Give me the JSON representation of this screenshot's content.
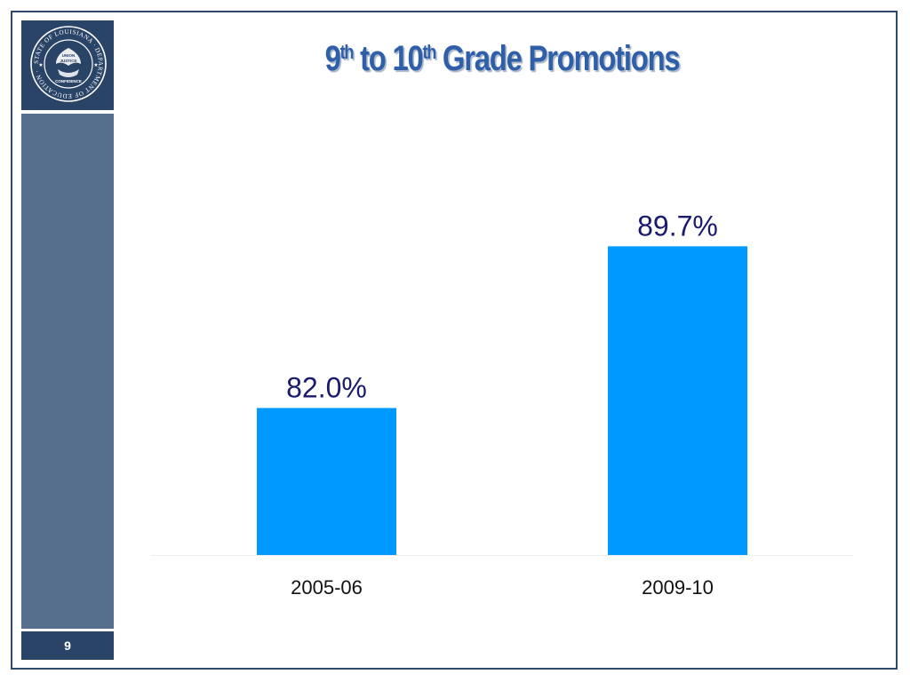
{
  "slide": {
    "title_parts": [
      {
        "text": "9",
        "sup": false
      },
      {
        "text": "th",
        "sup": true
      },
      {
        "text": " to 10",
        "sup": false
      },
      {
        "text": "th",
        "sup": true
      },
      {
        "text": " Grade Promotions",
        "sup": false
      }
    ],
    "slide_number": "9",
    "seal": {
      "ring_text": "STATE OF LOUISIANA · DEPARTMENT OF EDUCATION ·",
      "motto": [
        "UNION",
        "JUSTICE",
        "CONFIDENCE"
      ]
    }
  },
  "chart_data": {
    "type": "bar",
    "categories": [
      "2005-06",
      "2009-10"
    ],
    "values": [
      82.0,
      89.7
    ],
    "value_labels": [
      "82.0%",
      "89.7%"
    ],
    "title": "",
    "xlabel": "",
    "ylabel": "",
    "ylim": [
      75,
      95
    ],
    "grid": false,
    "legend": "none",
    "bar_color": "#0099ff",
    "label_color": "#1a1a6e",
    "axis_color": "#eeeeee"
  },
  "colors": {
    "frame": "#2e4a6b",
    "sidebar_dark": "#2a4468",
    "sidebar_light": "#566f8d",
    "title": "#2f5fa8"
  }
}
